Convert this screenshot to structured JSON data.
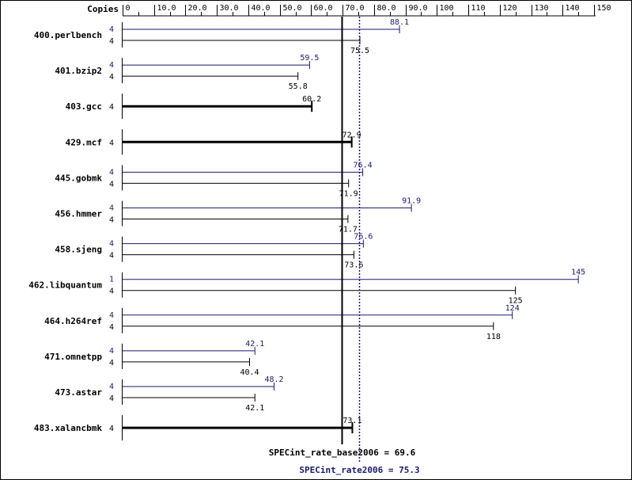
{
  "chart_data": {
    "type": "bar",
    "orientation": "horizontal",
    "copies_header": "Copies",
    "xlim": [
      0,
      150
    ],
    "ticks": [
      "0",
      "10.0",
      "20.0",
      "30.0",
      "40.0",
      "50.0",
      "60.0",
      "70.0",
      "80.0",
      "90.0",
      "100",
      "110",
      "120",
      "130",
      "140",
      "150"
    ],
    "colors": {
      "base": "#000000",
      "peak": "#191970"
    },
    "benchmarks": [
      {
        "name": "400.perlbench",
        "peak_copies": "4",
        "peak": 88.1,
        "peak_label": "88.1",
        "base_copies": "4",
        "base": 75.5,
        "base_label": "75.5"
      },
      {
        "name": "401.bzip2",
        "peak_copies": "4",
        "peak": 59.5,
        "peak_label": "59.5",
        "base_copies": "4",
        "base": 55.8,
        "base_label": "55.8"
      },
      {
        "name": "403.gcc",
        "copies": "4",
        "value": 60.2,
        "label": "60.2"
      },
      {
        "name": "429.mcf",
        "copies": "4",
        "value": 72.9,
        "label": "72.9"
      },
      {
        "name": "445.gobmk",
        "peak_copies": "4",
        "peak": 76.4,
        "peak_label": "76.4",
        "base_copies": "4",
        "base": 71.9,
        "base_label": "71.9"
      },
      {
        "name": "456.hmmer",
        "peak_copies": "4",
        "peak": 91.9,
        "peak_label": "91.9",
        "base_copies": "4",
        "base": 71.7,
        "base_label": "71.7"
      },
      {
        "name": "458.sjeng",
        "peak_copies": "4",
        "peak": 76.6,
        "peak_label": "76.6",
        "base_copies": "4",
        "base": 73.6,
        "base_label": "73.6"
      },
      {
        "name": "462.libquantum",
        "peak_copies": "1",
        "peak": 145,
        "peak_label": "145",
        "base_copies": "4",
        "base": 125,
        "base_label": "125"
      },
      {
        "name": "464.h264ref",
        "peak_copies": "4",
        "peak": 124,
        "peak_label": "124",
        "base_copies": "4",
        "base": 118,
        "base_label": "118"
      },
      {
        "name": "471.omnetpp",
        "peak_copies": "4",
        "peak": 42.1,
        "peak_label": "42.1",
        "base_copies": "4",
        "base": 40.4,
        "base_label": "40.4"
      },
      {
        "name": "473.astar",
        "peak_copies": "4",
        "peak": 48.2,
        "peak_label": "48.2",
        "base_copies": "4",
        "base": 42.1,
        "base_label": "42.1"
      },
      {
        "name": "483.xalancbmk",
        "copies": "4",
        "value": 73.1,
        "label": "73.1"
      }
    ],
    "reference_lines": [
      {
        "name": "base",
        "value": 69.6,
        "label": "SPECint_rate_base2006 = 69.6"
      },
      {
        "name": "peak",
        "value": 75.3,
        "label": "SPECint_rate2006 = 75.3"
      }
    ]
  }
}
